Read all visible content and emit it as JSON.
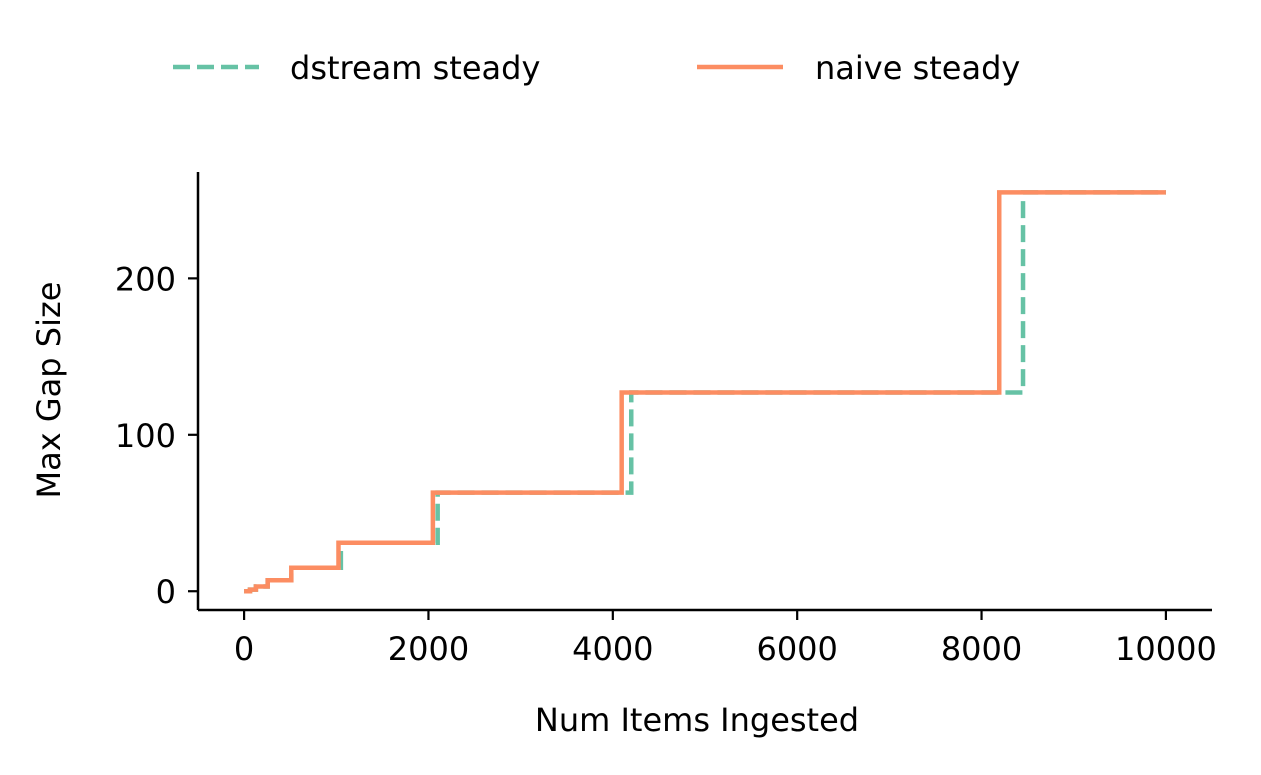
{
  "chart_data": {
    "type": "line",
    "title": "",
    "xlabel": "Num Items Ingested",
    "ylabel": "Max Gap Size",
    "xlim": [
      -500,
      10500
    ],
    "ylim": [
      -12,
      268
    ],
    "xticks": [
      0,
      2000,
      4000,
      6000,
      8000,
      10000
    ],
    "yticks": [
      0,
      100,
      200
    ],
    "grid": false,
    "legend_position": "top-center, above plot",
    "series": [
      {
        "name": "dstream steady",
        "color": "#66c2a5",
        "style": "dashed",
        "points": [
          [
            0,
            0
          ],
          [
            64,
            0
          ],
          [
            64,
            1
          ],
          [
            128,
            1
          ],
          [
            128,
            3
          ],
          [
            256,
            3
          ],
          [
            256,
            7
          ],
          [
            512,
            7
          ],
          [
            512,
            15
          ],
          [
            1050,
            15
          ],
          [
            1050,
            31
          ],
          [
            2100,
            31
          ],
          [
            2100,
            63
          ],
          [
            4200,
            63
          ],
          [
            4200,
            127
          ],
          [
            8450,
            127
          ],
          [
            8450,
            255
          ],
          [
            10000,
            255
          ]
        ]
      },
      {
        "name": "naive steady",
        "color": "#fc8d62",
        "style": "solid",
        "points": [
          [
            0,
            0
          ],
          [
            64,
            0
          ],
          [
            64,
            1
          ],
          [
            128,
            1
          ],
          [
            128,
            3
          ],
          [
            256,
            3
          ],
          [
            256,
            7
          ],
          [
            512,
            7
          ],
          [
            512,
            15
          ],
          [
            1024,
            15
          ],
          [
            1024,
            31
          ],
          [
            2048,
            31
          ],
          [
            2048,
            63
          ],
          [
            4096,
            63
          ],
          [
            4096,
            127
          ],
          [
            8192,
            127
          ],
          [
            8192,
            255
          ],
          [
            10000,
            255
          ]
        ]
      }
    ]
  }
}
